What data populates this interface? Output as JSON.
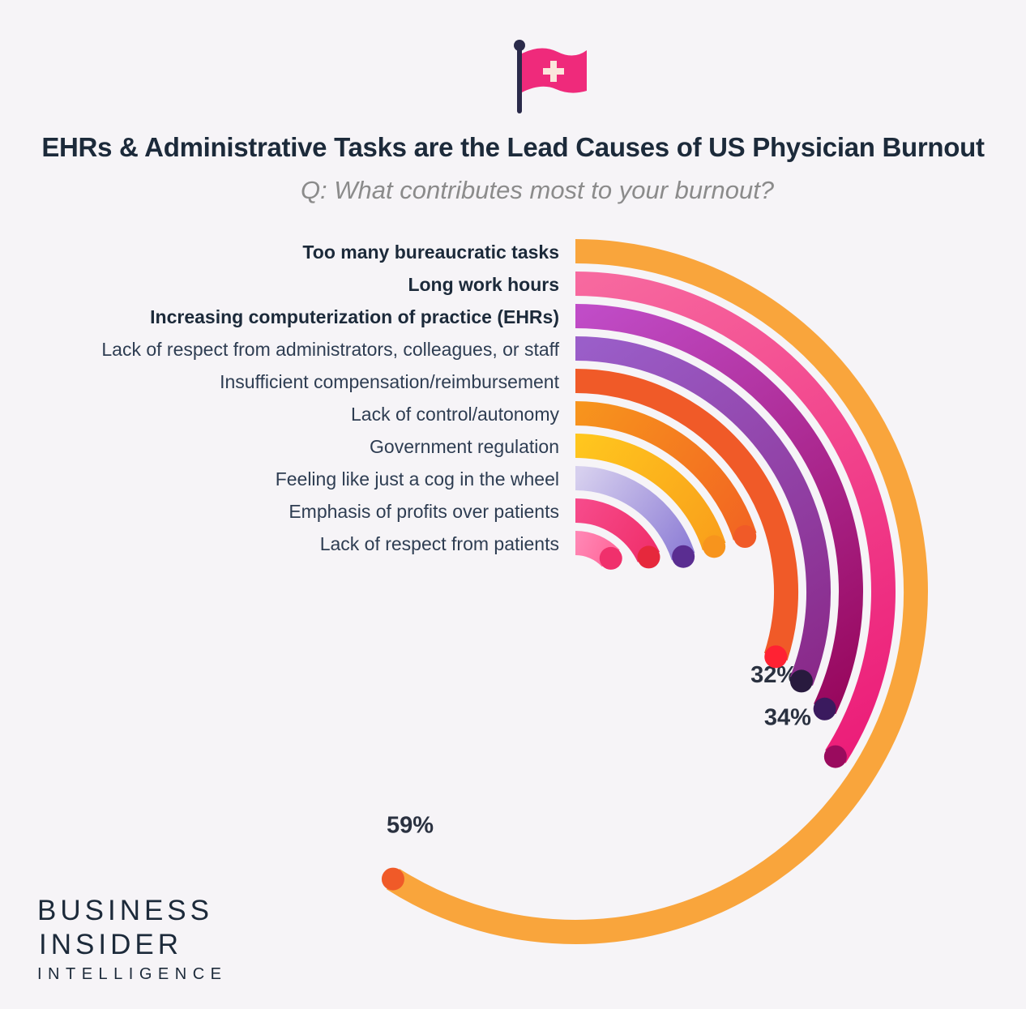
{
  "header": {
    "title": "EHRs & Administrative Tasks are the Lead Causes of US Physician Burnout",
    "subtitle": "Q: What contributes most to your burnout?"
  },
  "icon": {
    "name": "medical-flag-icon",
    "flag_color": "#ef2a7b",
    "pole_color": "#2a2a4a",
    "cross_color": "#fbe6dc"
  },
  "branding": {
    "line1": "BUSINESS",
    "line2": "INSIDER",
    "line3": "INTELLIGENCE"
  },
  "chart_data": {
    "type": "radial-bar",
    "title": "EHRs & Administrative Tasks are the Lead Causes of US Physician Burnout",
    "subtitle": "Q: What contributes most to your burnout?",
    "max_percent": 100,
    "series": [
      {
        "category": "Too many bureaucratic tasks",
        "value": 59,
        "value_label": "59%",
        "bold": true,
        "color": "#f9a53c",
        "end_color": "#f9a53c",
        "dot_color": "#f05a28"
      },
      {
        "category": "Long work hours",
        "value": 34,
        "value_label": "34%",
        "bold": true,
        "color": "#f7699f",
        "end_color": "#ec1e79",
        "dot_color": "#9a0b5e"
      },
      {
        "category": "Increasing computerization of practice (EHRs)",
        "value": 32,
        "value_label": "32%",
        "bold": true,
        "color": "#c04cc7",
        "end_color": "#98085e",
        "dot_color": "#3a1a5e"
      },
      {
        "category": "Lack of respect from administrators, colleagues, or staff",
        "value": 31,
        "bold": false,
        "color": "#9a5ec9",
        "end_color": "#8a2a8a",
        "dot_color": "#281a3e"
      },
      {
        "category": "Insufficient compensation/reimbursement",
        "value": 30,
        "bold": false,
        "color": "#f05a28",
        "end_color": "#f05a28",
        "dot_color": "#ff2233"
      },
      {
        "category": "Lack of control/autonomy",
        "value": 20,
        "bold": false,
        "color": "#f7941d",
        "end_color": "#f26522",
        "dot_color": "#f05a28"
      },
      {
        "category": "Government regulation",
        "value": 20,
        "bold": false,
        "color": "#ffc61e",
        "end_color": "#f9a01b",
        "dot_color": "#f7941d"
      },
      {
        "category": "Feeling like just a cog in the wheel",
        "value": 20,
        "bold": false,
        "color": "#d6cfee",
        "end_color": "#8f7fd6",
        "dot_color": "#5a2d91"
      },
      {
        "category": "Emphasis of profits over patients",
        "value": 18,
        "bold": false,
        "color": "#f64a8a",
        "end_color": "#f0306c",
        "dot_color": "#e6283c"
      },
      {
        "category": "Lack of respect from patients",
        "value": 13,
        "bold": false,
        "color": "#ff86b4",
        "end_color": "#ff6a9c",
        "dot_color": "#f0306c"
      }
    ]
  }
}
